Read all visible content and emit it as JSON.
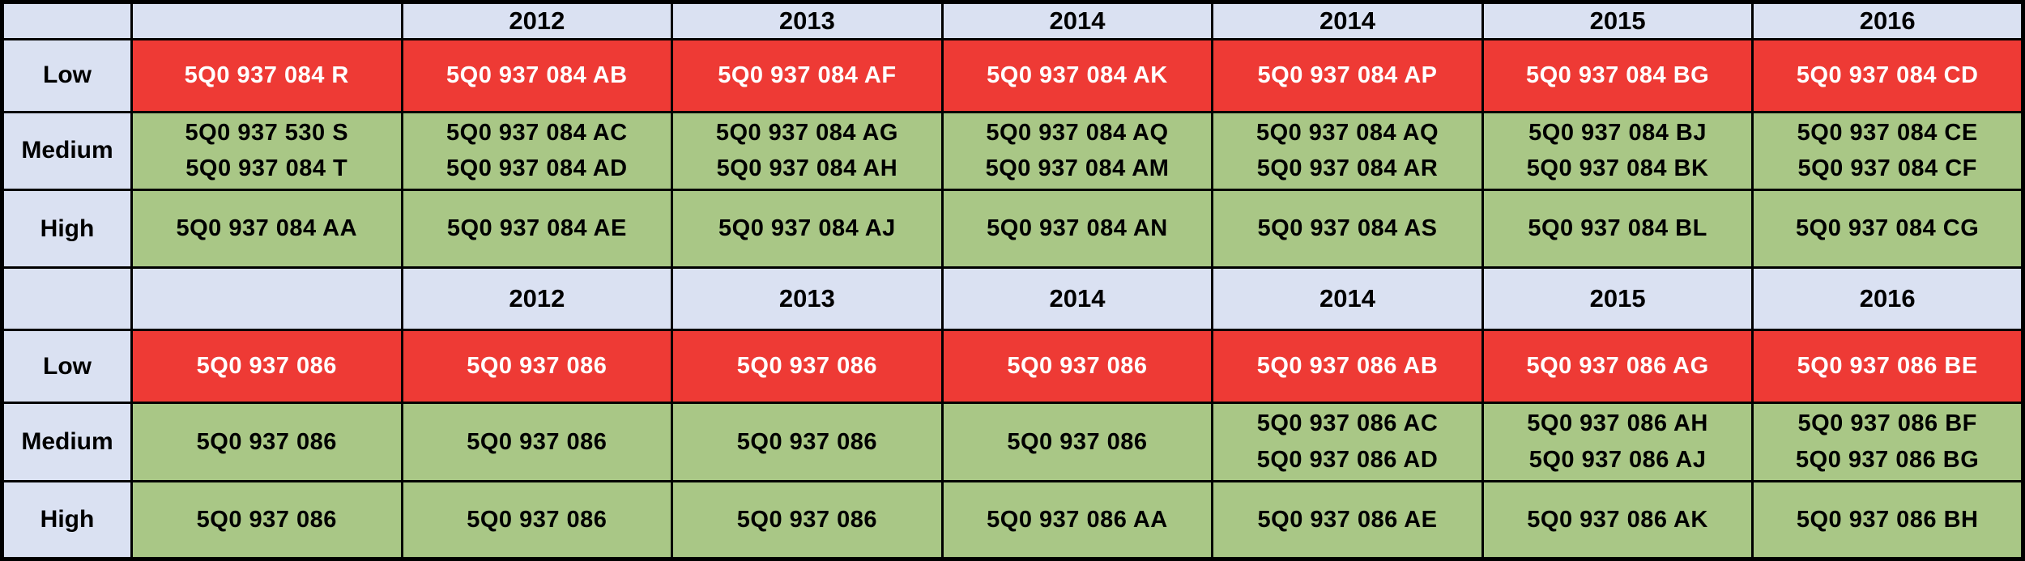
{
  "colors": {
    "header_bg": "#dae1f2",
    "low_bg": "#ee3a35",
    "low_text": "#ffffff",
    "ok_bg": "#a9c786",
    "border": "#000000"
  },
  "tables": [
    {
      "years": [
        "",
        "2012",
        "2013",
        "2014",
        "2014",
        "2015",
        "2016"
      ],
      "rows": [
        {
          "label": "Low",
          "level": "low",
          "cells": [
            [
              "5Q0 937 084 R"
            ],
            [
              "5Q0 937 084 AB"
            ],
            [
              "5Q0 937 084 AF"
            ],
            [
              "5Q0 937 084 AK"
            ],
            [
              "5Q0 937 084 AP"
            ],
            [
              "5Q0 937 084 BG"
            ],
            [
              "5Q0 937 084 CD"
            ]
          ]
        },
        {
          "label": "Medium",
          "level": "medium",
          "cells": [
            [
              "5Q0 937 530 S",
              "5Q0 937 084 T"
            ],
            [
              "5Q0 937 084 AC",
              "5Q0 937 084 AD"
            ],
            [
              "5Q0 937 084 AG",
              "5Q0 937 084 AH"
            ],
            [
              "5Q0 937 084 AQ",
              "5Q0 937 084 AM"
            ],
            [
              "5Q0 937 084 AQ",
              "5Q0 937 084 AR"
            ],
            [
              "5Q0 937 084 BJ",
              "5Q0 937 084 BK"
            ],
            [
              "5Q0 937 084 CE",
              "5Q0 937 084 CF"
            ]
          ]
        },
        {
          "label": "High",
          "level": "high",
          "cells": [
            [
              "5Q0 937 084 AA"
            ],
            [
              "5Q0 937 084 AE"
            ],
            [
              "5Q0 937 084 AJ"
            ],
            [
              "5Q0 937 084 AN"
            ],
            [
              "5Q0 937 084 AS"
            ],
            [
              "5Q0 937 084 BL"
            ],
            [
              "5Q0 937 084 CG"
            ]
          ]
        }
      ]
    },
    {
      "years": [
        "",
        "2012",
        "2013",
        "2014",
        "2014",
        "2015",
        "2016"
      ],
      "rows": [
        {
          "label": "Low",
          "level": "low",
          "cells": [
            [
              "5Q0 937 086"
            ],
            [
              "5Q0 937 086"
            ],
            [
              "5Q0 937 086"
            ],
            [
              "5Q0 937 086"
            ],
            [
              "5Q0 937 086 AB"
            ],
            [
              "5Q0 937 086 AG"
            ],
            [
              "5Q0 937 086 BE"
            ]
          ]
        },
        {
          "label": "Medium",
          "level": "medium",
          "cells": [
            [
              "5Q0 937 086"
            ],
            [
              "5Q0 937 086"
            ],
            [
              "5Q0 937 086"
            ],
            [
              "5Q0 937 086"
            ],
            [
              "5Q0 937 086 AC",
              "5Q0 937 086 AD"
            ],
            [
              "5Q0 937 086 AH",
              "5Q0 937 086 AJ"
            ],
            [
              "5Q0 937 086 BF",
              "5Q0 937 086 BG"
            ]
          ]
        },
        {
          "label": "High",
          "level": "high",
          "cells": [
            [
              "5Q0 937 086"
            ],
            [
              "5Q0 937 086"
            ],
            [
              "5Q0 937 086"
            ],
            [
              "5Q0 937 086 AA"
            ],
            [
              "5Q0 937 086 AE"
            ],
            [
              "5Q0 937 086 AK"
            ],
            [
              "5Q0 937 086 BH"
            ]
          ]
        }
      ]
    }
  ]
}
